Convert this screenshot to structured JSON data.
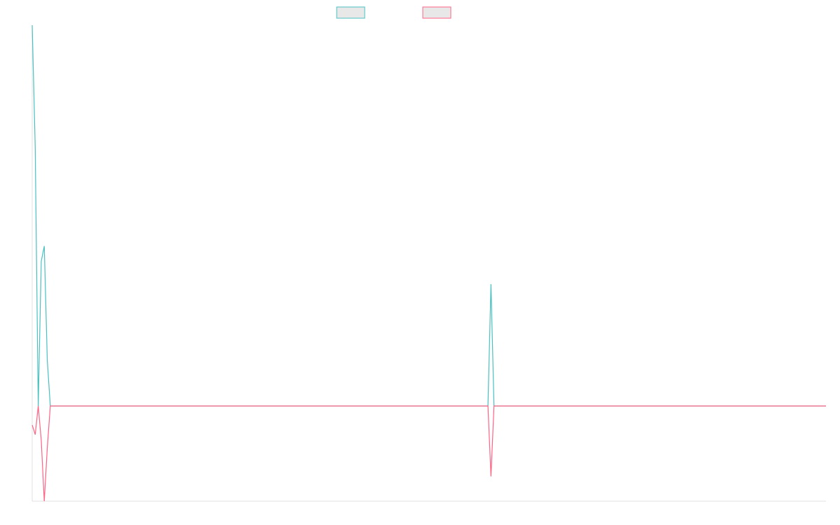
{
  "chart_data": {
    "type": "line",
    "x": [
      0,
      1,
      2,
      3,
      4,
      5,
      6,
      7,
      151,
      152,
      153,
      263
    ],
    "xlim": [
      0,
      263
    ],
    "ylim": [
      -2.5,
      10
    ],
    "series": [
      {
        "color": "#4bc0c0",
        "values": [
          10,
          6.8,
          0,
          3.8,
          4.2,
          1.2,
          0,
          0,
          0,
          3.2,
          0,
          0
        ]
      },
      {
        "color": "#ff6384",
        "values": [
          -0.5,
          -0.75,
          0,
          -0.9,
          -2.5,
          -1.1,
          0,
          0,
          0,
          -1.85,
          0,
          0
        ]
      }
    ],
    "legend": "top"
  }
}
